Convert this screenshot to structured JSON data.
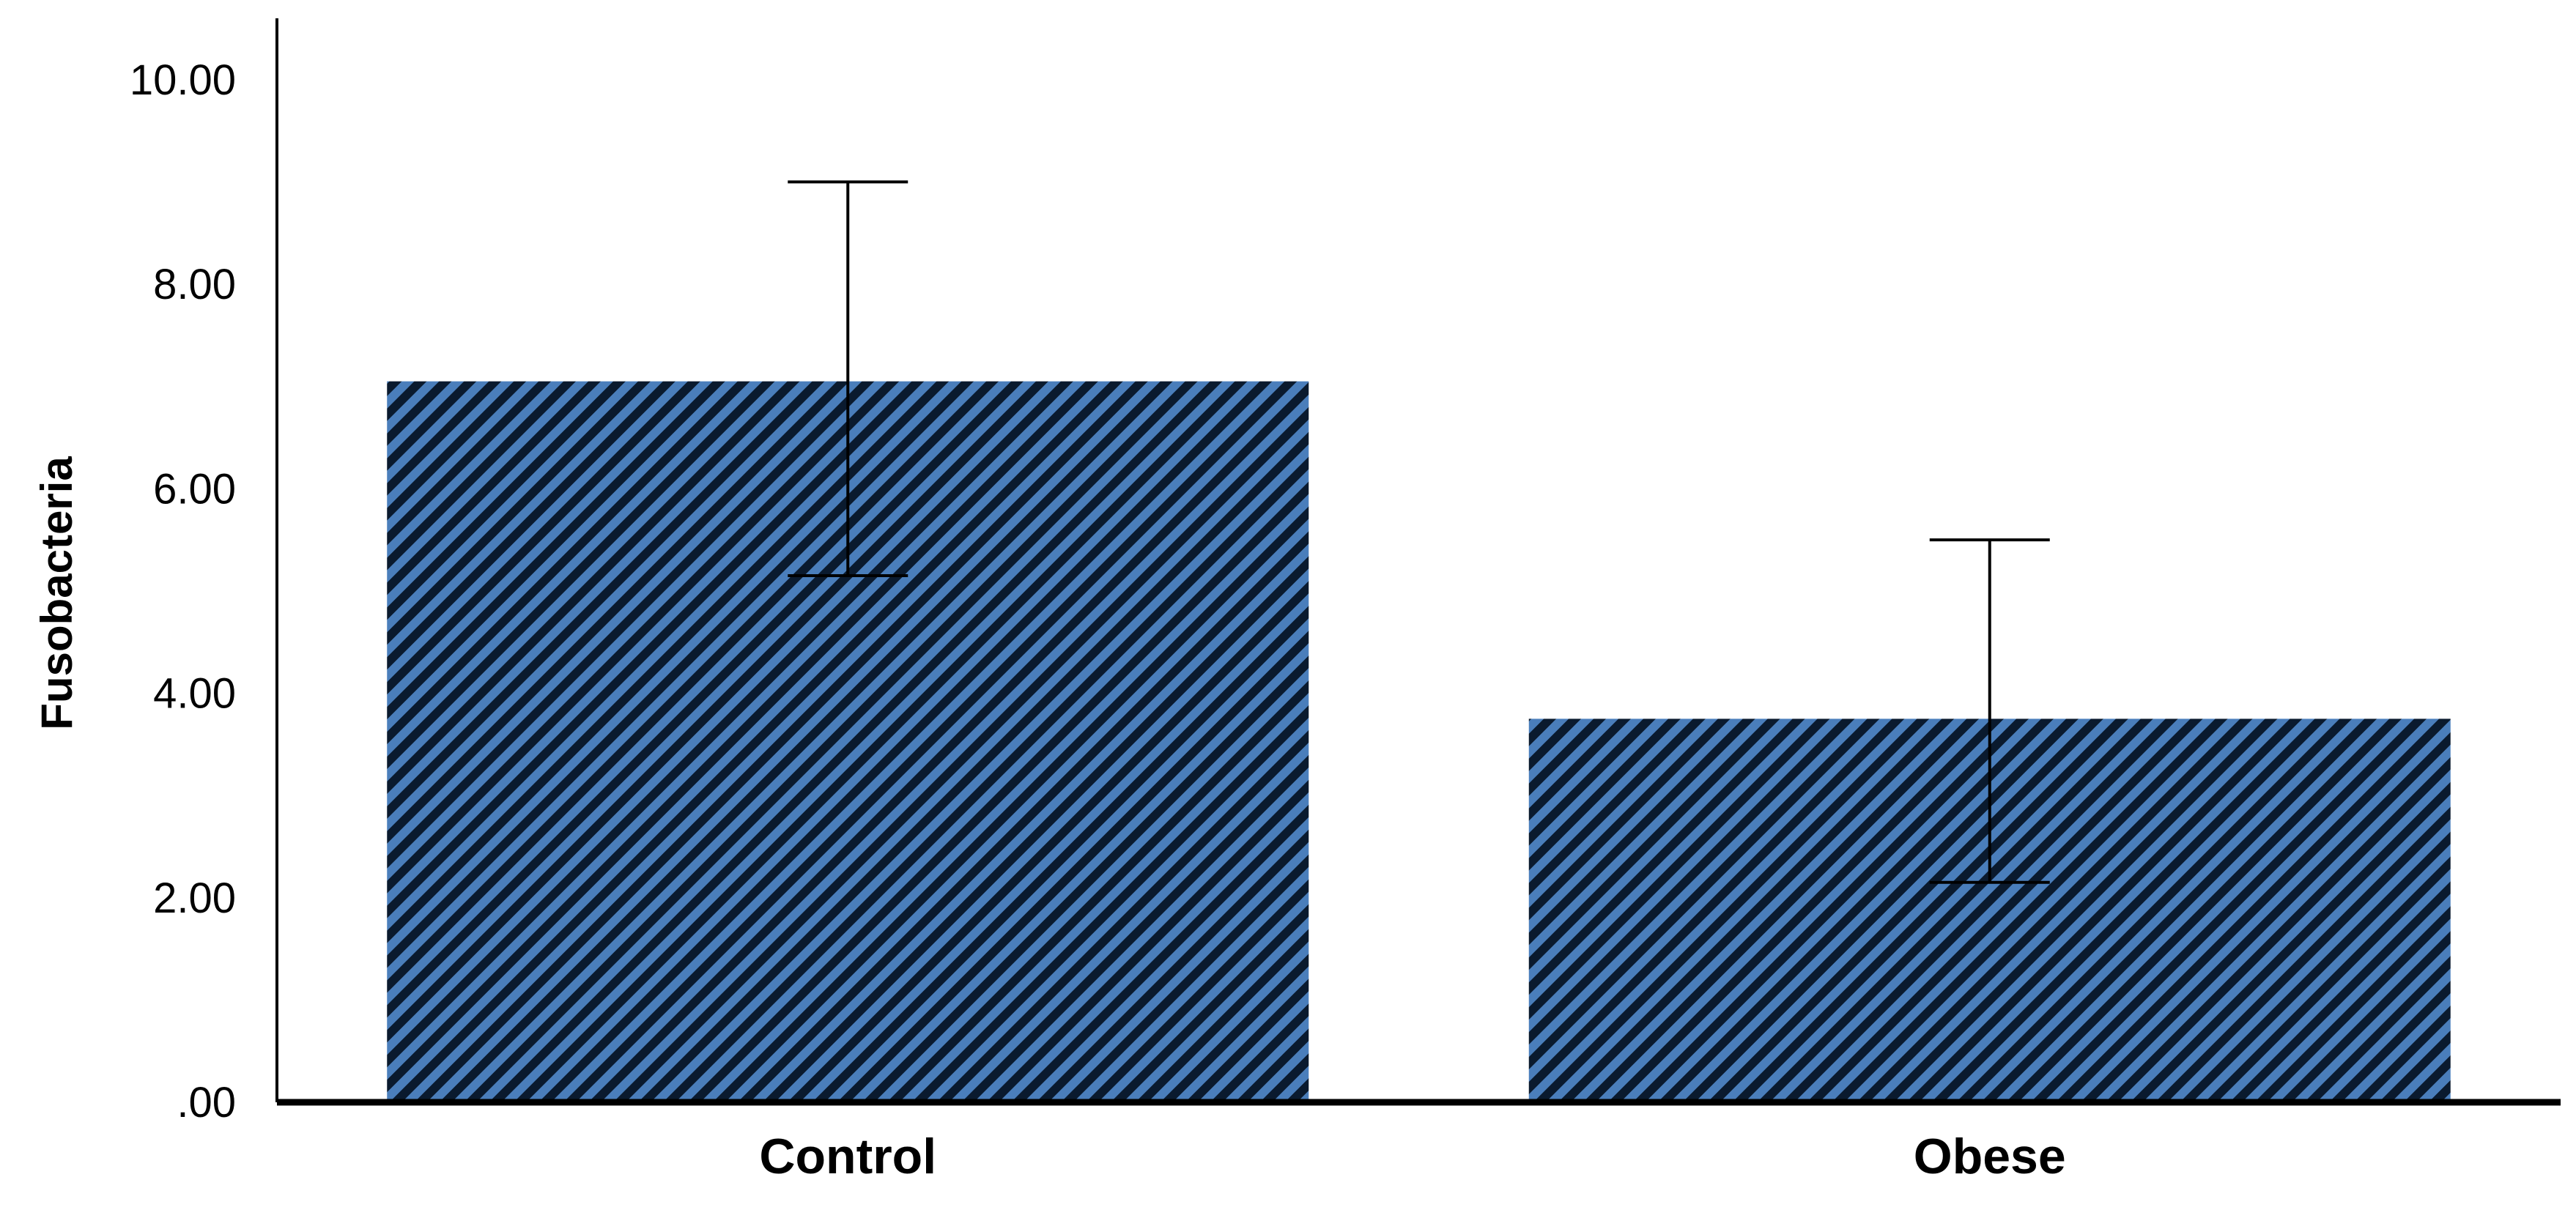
{
  "chart_data": {
    "type": "bar",
    "title": "",
    "xlabel": "",
    "ylabel": "Fusobacteria",
    "categories": [
      "Control",
      "Obese"
    ],
    "values": [
      7.05,
      3.75
    ],
    "error_upper": [
      9.0,
      5.5
    ],
    "error_lower": [
      5.15,
      2.15
    ],
    "ylim": [
      0,
      10.6
    ],
    "yticks": [
      0,
      2,
      4,
      6,
      8,
      10
    ],
    "ytick_labels": [
      ".00",
      "2.00",
      "4.00",
      "6.00",
      "8.00",
      "10.00"
    ],
    "grid": false,
    "legend": "none",
    "bar_fill": "hatched",
    "colors": {
      "bar_stripe": "#4A7EBB",
      "bar_hatch": "#0A1A2E",
      "axis": "#000000",
      "error_bar": "#000000"
    }
  }
}
